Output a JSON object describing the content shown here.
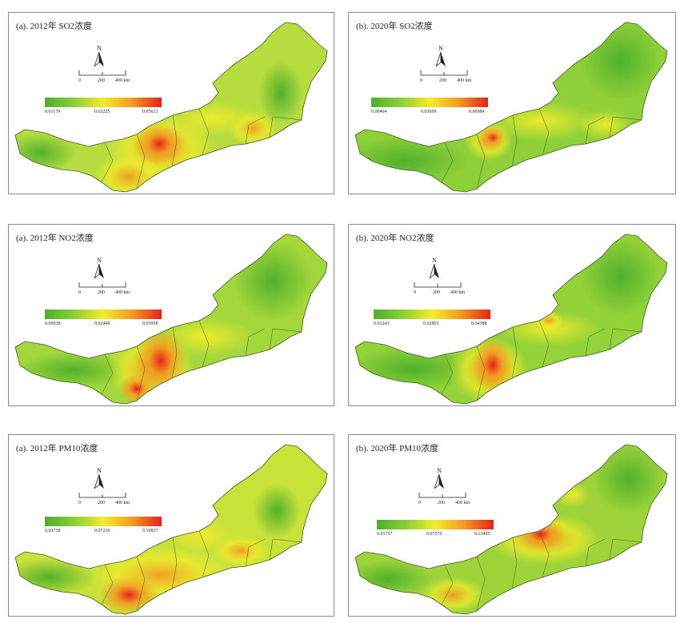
{
  "colors": {
    "low": "#4caf2a",
    "mid_low": "#8bcf36",
    "mid": "#f3ec2a",
    "mid_high": "#f29a22",
    "high": "#e8201c",
    "panel_border": "#8a8a8a",
    "boundary": "#3d5a2a"
  },
  "panels": [
    {
      "title": "(a). 2012年 SO2浓度",
      "north_label": "N",
      "scale_labels": [
        "0",
        "200",
        "400 km"
      ],
      "legend": {
        "min": "0.01179",
        "mid": "0.03225",
        "max": "0.05613"
      }
    },
    {
      "title": "(b). 2020年 SO2浓度",
      "north_label": "N",
      "scale_labels": [
        "0",
        "200",
        "400 km"
      ],
      "legend": {
        "min": "0.00464",
        "mid": "0.03699",
        "max": "0.06984"
      }
    },
    {
      "title": "(a). 2012年 NO2浓度",
      "north_label": "N",
      "scale_labels": [
        "0",
        "200",
        "400 km"
      ],
      "legend": {
        "min": "0.00938",
        "mid": "0.02449",
        "max": "0.03958"
      }
    },
    {
      "title": "(b). 2020年 NO2浓度",
      "north_label": "N",
      "scale_labels": [
        "0",
        "200",
        "400 km"
      ],
      "legend": {
        "min": "0.01243",
        "mid": "0.02803",
        "max": "0.04388"
      }
    },
    {
      "title": "(a). 2012年 PM10浓度",
      "north_label": "N",
      "scale_labels": [
        "0",
        "200",
        "400 km"
      ],
      "legend": {
        "min": "0.03738",
        "mid": "0.07236",
        "max": "0.10837"
      }
    },
    {
      "title": "(b). 2020年 PM10浓度",
      "north_label": "N",
      "scale_labels": [
        "0",
        "200",
        "400 km"
      ],
      "legend": {
        "min": "0.01757",
        "mid": "0.07579",
        "max": "0.13495"
      }
    }
  ]
}
